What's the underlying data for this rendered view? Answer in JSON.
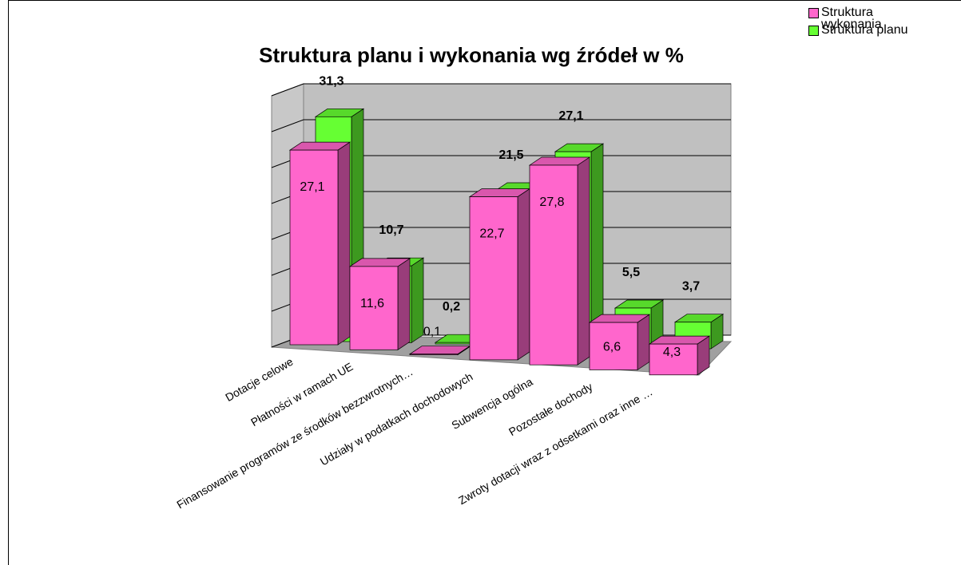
{
  "chart_data": {
    "type": "bar3d",
    "title": "Struktura planu i wykonania wg źródeł w %",
    "categories": [
      "Dotacje celowe",
      "Płatności w ramach UE",
      "Finansowanie programów ze środków bezzwrotnych…",
      "Udziały w podatkach dochodowych",
      "Subwencja ogólna",
      "Pozostałe dochody",
      "Zwroty dotacji wraz z odsetkami oraz inne …"
    ],
    "series": [
      {
        "name": "Struktura wykonania",
        "color": "#ff66cc",
        "values": [
          27.1,
          11.6,
          0.1,
          22.7,
          27.8,
          6.6,
          4.3
        ],
        "value_labels": [
          "27,1",
          "11,6",
          "0,1",
          "22,7",
          "27,8",
          "6,6",
          "4,3"
        ]
      },
      {
        "name": "Struktura planu",
        "color": "#66ff33",
        "values": [
          31.3,
          10.7,
          0.2,
          21.5,
          27.1,
          5.5,
          3.7
        ],
        "value_labels": [
          "31,3",
          "10,7",
          "0,2",
          "21,5",
          "27,1",
          "5,5",
          "3,7"
        ]
      }
    ],
    "ylim": [
      0,
      35
    ],
    "yticks": [
      0,
      5,
      10,
      15,
      20,
      25,
      30,
      35
    ],
    "grid": true,
    "legend": "top-right"
  }
}
